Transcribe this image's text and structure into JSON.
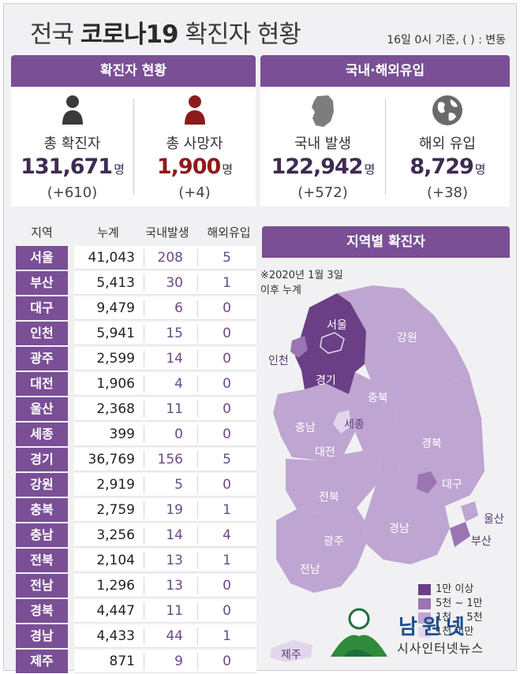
{
  "header": {
    "title_pre": "전국 ",
    "title_bold": "코로나19",
    "title_post": " 확진자 현황",
    "subtitle": "16일 0시 기준, ( ) : 변동"
  },
  "summary": {
    "heading": "확진자 현황",
    "total": {
      "label": "총 확진자",
      "value": "131,671",
      "unit": "명",
      "change": "(+610)"
    },
    "deaths": {
      "label": "총 사망자",
      "value": "1,900",
      "unit": "명",
      "change": "(+4)"
    }
  },
  "origin": {
    "heading": "국내·해외유입",
    "domestic": {
      "label": "국내 발생",
      "value": "122,942",
      "unit": "명",
      "change": "(+572)"
    },
    "overseas": {
      "label": "해외 유입",
      "value": "8,729",
      "unit": "명",
      "change": "(+38)"
    }
  },
  "table": {
    "headers": [
      "지역",
      "누계",
      "국내발생",
      "해외유입"
    ],
    "rows": [
      {
        "region": "서울",
        "total": "41,043",
        "domestic": "208",
        "overseas": "5"
      },
      {
        "region": "부산",
        "total": "5,413",
        "domestic": "30",
        "overseas": "1"
      },
      {
        "region": "대구",
        "total": "9,479",
        "domestic": "6",
        "overseas": "0"
      },
      {
        "region": "인천",
        "total": "5,941",
        "domestic": "15",
        "overseas": "0"
      },
      {
        "region": "광주",
        "total": "2,599",
        "domestic": "14",
        "overseas": "0"
      },
      {
        "region": "대전",
        "total": "1,906",
        "domestic": "4",
        "overseas": "0"
      },
      {
        "region": "울산",
        "total": "2,368",
        "domestic": "11",
        "overseas": "0"
      },
      {
        "region": "세종",
        "total": "399",
        "domestic": "0",
        "overseas": "0"
      },
      {
        "region": "경기",
        "total": "36,769",
        "domestic": "156",
        "overseas": "5"
      },
      {
        "region": "강원",
        "total": "2,919",
        "domestic": "5",
        "overseas": "0"
      },
      {
        "region": "충북",
        "total": "2,759",
        "domestic": "19",
        "overseas": "1"
      },
      {
        "region": "충남",
        "total": "3,256",
        "domestic": "14",
        "overseas": "4"
      },
      {
        "region": "전북",
        "total": "2,104",
        "domestic": "13",
        "overseas": "1"
      },
      {
        "region": "전남",
        "total": "1,296",
        "domestic": "13",
        "overseas": "0"
      },
      {
        "region": "경북",
        "total": "4,447",
        "domestic": "11",
        "overseas": "0"
      },
      {
        "region": "경남",
        "total": "4,433",
        "domestic": "44",
        "overseas": "1"
      },
      {
        "region": "제주",
        "total": "871",
        "domestic": "9",
        "overseas": "0"
      }
    ]
  },
  "map": {
    "heading": "지역별 확진자",
    "note_line1": "※2020년 1월 3일",
    "note_line2": "이후 누계",
    "labels": {
      "seoul": "서울",
      "incheon": "인천",
      "gyeonggi": "경기",
      "gangwon": "강원",
      "chungbuk": "충북",
      "sejong": "세종",
      "chungnam": "충남",
      "daejeon": "대전",
      "gyeongbuk": "경북",
      "daegu": "대구",
      "jeonbuk": "전북",
      "ulsan": "울산",
      "gyeongnam": "경남",
      "busan": "부산",
      "gwangju": "광주",
      "jeonnam": "전남",
      "jeju": "제주"
    },
    "colors": {
      "level1": "#6a3f86",
      "level2": "#9a74b3",
      "level3": "#bfa5d2",
      "level4": "#e2d6ec"
    },
    "legend": [
      "1만 이상",
      "5천 ~ 1만",
      "1천 ~ 5천",
      "1천 미만"
    ]
  },
  "logo": {
    "brand": "남원넷",
    "sub": "시사인터넷뉴스"
  }
}
